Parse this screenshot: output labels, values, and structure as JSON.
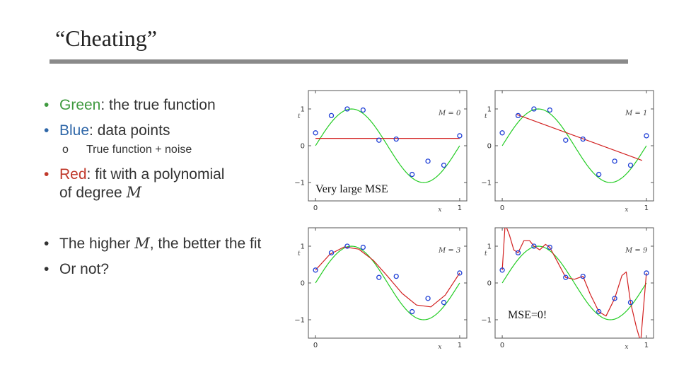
{
  "slide": {
    "title": "“Cheating”",
    "bullets": {
      "b1": {
        "keyword": "Green",
        "rest": ": the true function"
      },
      "b2": {
        "keyword": "Blue",
        "rest": ": data points"
      },
      "b2_sub": "True function + noise",
      "b3": {
        "keyword": "Red",
        "rest": ": fit with a polynomial",
        "line2": "of degree ",
        "var": "M"
      },
      "b4": {
        "pre": "The higher ",
        "var": "M",
        "post": ", the better the fit"
      },
      "b5": "Or not?"
    }
  },
  "colors": {
    "green": "#3f9a3f",
    "blue": "#2f67a8",
    "red": "#c0392b"
  },
  "annotations": {
    "top_left": "Very large MSE",
    "bottom_right": "MSE=0!"
  },
  "chart_data": [
    {
      "type": "line",
      "panel_label": "M = 0",
      "xlabel": "x",
      "ylabel": "t",
      "xticks": [
        "0",
        "1"
      ],
      "yticks": [
        "−1",
        "0",
        "1"
      ],
      "xlim": [
        0,
        1
      ],
      "ylim": [
        -1.5,
        1.5
      ],
      "data_points": {
        "x": [
          0,
          0.11,
          0.22,
          0.33,
          0.44,
          0.56,
          0.67,
          0.78,
          0.89,
          1.0
        ],
        "t": [
          0.35,
          0.82,
          1.0,
          0.97,
          0.15,
          0.18,
          -0.78,
          -0.42,
          -0.53,
          0.27
        ]
      },
      "fit": {
        "x": [
          0,
          1
        ],
        "y": [
          0.2,
          0.2
        ]
      }
    },
    {
      "type": "line",
      "panel_label": "M = 1",
      "xlabel": "x",
      "ylabel": "t",
      "xticks": [
        "0",
        "1"
      ],
      "yticks": [
        "−1",
        "0",
        "1"
      ],
      "xlim": [
        0,
        1
      ],
      "ylim": [
        -1.5,
        1.5
      ],
      "data_points": {
        "x": [
          0,
          0.11,
          0.22,
          0.33,
          0.44,
          0.56,
          0.67,
          0.78,
          0.89,
          1.0
        ],
        "t": [
          0.35,
          0.82,
          1.0,
          0.97,
          0.15,
          0.18,
          -0.78,
          -0.42,
          -0.53,
          0.27
        ]
      },
      "fit": {
        "x": [
          0.1,
          0.97
        ],
        "y": [
          0.85,
          -0.4
        ]
      }
    },
    {
      "type": "line",
      "panel_label": "M = 3",
      "xlabel": "x",
      "ylabel": "t",
      "xticks": [
        "0",
        "1"
      ],
      "yticks": [
        "−1",
        "0",
        "1"
      ],
      "xlim": [
        0,
        1
      ],
      "ylim": [
        -1.5,
        1.5
      ],
      "data_points": {
        "x": [
          0,
          0.11,
          0.22,
          0.33,
          0.44,
          0.56,
          0.67,
          0.78,
          0.89,
          1.0
        ],
        "t": [
          0.35,
          0.82,
          1.0,
          0.97,
          0.15,
          0.18,
          -0.78,
          -0.42,
          -0.53,
          0.27
        ]
      },
      "fit": {
        "x": [
          0,
          0.1,
          0.2,
          0.3,
          0.4,
          0.5,
          0.6,
          0.7,
          0.8,
          0.9,
          1.0
        ],
        "y": [
          0.35,
          0.78,
          0.98,
          0.92,
          0.62,
          0.18,
          -0.28,
          -0.6,
          -0.65,
          -0.33,
          0.27
        ]
      }
    },
    {
      "type": "line",
      "panel_label": "M = 9",
      "xlabel": "x",
      "ylabel": "t",
      "xticks": [
        "0",
        "1"
      ],
      "yticks": [
        "−1",
        "0",
        "1"
      ],
      "xlim": [
        0,
        1
      ],
      "ylim": [
        -1.5,
        1.5
      ],
      "data_points": {
        "x": [
          0,
          0.11,
          0.22,
          0.33,
          0.44,
          0.56,
          0.67,
          0.78,
          0.89,
          1.0
        ],
        "t": [
          0.35,
          0.82,
          1.0,
          0.97,
          0.15,
          0.18,
          -0.78,
          -0.42,
          -0.53,
          0.27
        ]
      },
      "fit": {
        "x": [
          0,
          0.02,
          0.05,
          0.08,
          0.11,
          0.15,
          0.19,
          0.22,
          0.26,
          0.3,
          0.33,
          0.38,
          0.44,
          0.5,
          0.56,
          0.61,
          0.67,
          0.72,
          0.78,
          0.83,
          0.86,
          0.89,
          0.93,
          0.96,
          1.0
        ],
        "y": [
          0.35,
          1.6,
          1.3,
          0.9,
          0.82,
          1.15,
          1.15,
          1.0,
          0.9,
          1.05,
          0.97,
          0.6,
          0.15,
          0.1,
          0.18,
          -0.3,
          -0.78,
          -0.9,
          -0.42,
          0.2,
          0.3,
          -0.53,
          -1.2,
          -1.6,
          0.27
        ]
      }
    }
  ]
}
